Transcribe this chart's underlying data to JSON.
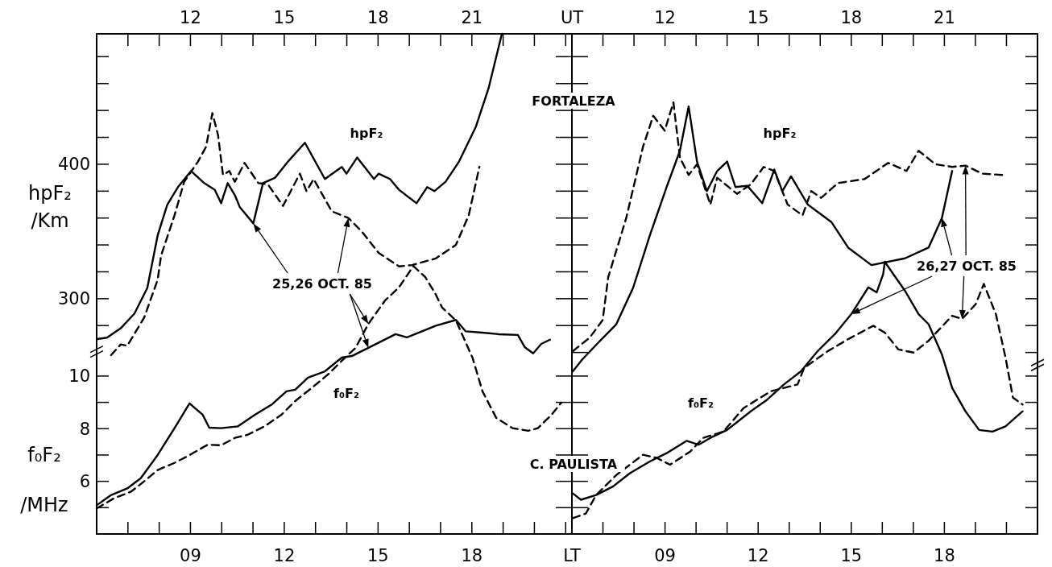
{
  "chart_data": [
    {
      "type": "line",
      "ylabel": "f₀F₂ /MHz",
      "y2label": "hpF₂ /Km",
      "xlim": [
        6,
        21.2
      ],
      "xticks": [
        {
          "value": 7,
          "label": null
        },
        {
          "value": 8,
          "label": null
        },
        {
          "value": 9,
          "label": "09"
        },
        {
          "value": 10,
          "label": null
        },
        {
          "value": 11,
          "label": null
        },
        12,
        {
          "value": 13,
          "label": null
        },
        {
          "value": 14,
          "label": null
        },
        15,
        {
          "value": 16,
          "label": null
        },
        {
          "value": 17,
          "label": null
        },
        18,
        {
          "value": 19,
          "label": null
        },
        {
          "value": 20,
          "label": null
        },
        {
          "value": 21,
          "label": null
        }
      ],
      "x2lim": [
        9,
        24.2
      ],
      "x2ticks": [
        {
          "value": 10,
          "label": null
        },
        {
          "value": 11,
          "label": null
        },
        12,
        {
          "value": 13,
          "label": null
        },
        {
          "value": 14,
          "label": null
        },
        15,
        {
          "value": 16,
          "label": null
        },
        {
          "value": 17,
          "label": null
        },
        18,
        {
          "value": 19,
          "label": null
        },
        {
          "value": 20,
          "label": null
        },
        21,
        {
          "value": 22,
          "label": null
        },
        {
          "value": 23,
          "label": null
        },
        {
          "value": 24,
          "label": null
        }
      ],
      "ylim": [
        4,
        23
      ],
      "yticks": [
        {
          "value": 5,
          "label": null
        },
        6,
        {
          "value": 7,
          "label": null
        },
        8,
        {
          "value": 9,
          "label": null
        },
        10
      ],
      "y2lim": [
        125,
        497
      ],
      "y2ticks": [
        {
          "value": 280,
          "label": null
        },
        300,
        {
          "value": 320,
          "label": null
        },
        {
          "value": 340,
          "label": null
        },
        {
          "value": 360,
          "label": null
        },
        {
          "value": 380,
          "label": null
        },
        400,
        {
          "value": 420,
          "label": null
        },
        {
          "value": 440,
          "label": null
        },
        {
          "value": 460,
          "label": null
        },
        {
          "value": 480,
          "label": null
        }
      ],
      "series": [
        {
          "color": "#000000",
          "line_style": "solid",
          "axis": "y2",
          "x": [
            6.0,
            6.33,
            6.77,
            7.21,
            7.62,
            7.95,
            8.26,
            8.6,
            9.02,
            9.44,
            9.78,
            9.98,
            10.19,
            10.42,
            10.58,
            11.01,
            11.32,
            11.71,
            12.12,
            12.66,
            13.3,
            13.84,
            13.99,
            14.33,
            14.87,
            15.02,
            15.38,
            15.67,
            16.23,
            16.57,
            16.8,
            17.16,
            17.59,
            18.13,
            18.54,
            18.96
          ],
          "values": [
            270,
            271,
            278,
            289,
            308,
            347,
            370,
            383,
            395,
            386,
            381,
            371,
            386,
            377,
            368,
            356,
            386,
            390,
            402,
            416,
            389,
            398,
            393,
            405,
            389,
            393,
            389,
            381,
            371,
            383,
            380,
            387,
            402,
            428,
            457,
            497
          ]
        },
        {
          "color": "#000000",
          "line_style": "dashed",
          "axis": "y2",
          "x": [
            6.46,
            6.77,
            6.98,
            7.52,
            7.95,
            8.06,
            8.49,
            8.8,
            9.24,
            9.5,
            9.7,
            9.88,
            10.04,
            10.24,
            10.42,
            10.73,
            11.17,
            11.48,
            11.96,
            12.5,
            12.71,
            12.94,
            13.52,
            14.05,
            14.48,
            15.02,
            15.67,
            16.09,
            16.85,
            17.49,
            17.9,
            18.24
          ],
          "values": [
            258,
            266,
            265,
            286,
            314,
            332,
            362,
            387,
            402,
            413,
            438,
            422,
            392,
            395,
            387,
            401,
            386,
            385,
            369,
            393,
            380,
            389,
            365,
            360,
            350,
            334,
            324,
            325,
            330,
            340,
            362,
            398
          ]
        },
        {
          "color": "#000000",
          "line_style": "solid",
          "axis": "y",
          "x": [
            6.0,
            6.45,
            6.98,
            7.41,
            7.95,
            8.49,
            8.97,
            9.39,
            9.6,
            9.98,
            10.52,
            11.06,
            11.59,
            12.07,
            12.35,
            12.76,
            13.3,
            13.84,
            14.16,
            14.69,
            15.56,
            15.92,
            16.31,
            16.85,
            17.49,
            17.8,
            18.34,
            18.85,
            19.47,
            19.69,
            19.96,
            20.22,
            20.5
          ],
          "values": [
            5.09,
            5.47,
            5.73,
            6.12,
            7.0,
            8.02,
            8.96,
            8.53,
            8.04,
            8.02,
            8.09,
            8.53,
            8.91,
            9.42,
            9.48,
            9.94,
            10.18,
            10.7,
            10.76,
            11.07,
            11.59,
            11.47,
            11.65,
            11.91,
            12.13,
            11.7,
            11.65,
            11.59,
            11.56,
            11.1,
            10.86,
            11.22,
            11.38
          ]
        },
        {
          "color": "#000000",
          "line_style": "dashed",
          "axis": "y",
          "x": [
            6.0,
            6.56,
            7.09,
            7.52,
            7.95,
            8.49,
            8.9,
            9.55,
            9.98,
            10.42,
            10.83,
            11.37,
            11.91,
            12.35,
            12.88,
            13.4,
            13.84,
            14.28,
            14.69,
            15.23,
            15.67,
            16.13,
            16.51,
            16.84,
            17.05,
            17.49,
            18.02,
            18.34,
            18.78,
            19.3,
            19.8,
            20.11,
            20.55,
            20.86
          ],
          "values": [
            4.97,
            5.36,
            5.6,
            6.0,
            6.43,
            6.7,
            6.95,
            7.39,
            7.37,
            7.65,
            7.77,
            8.09,
            8.53,
            9.05,
            9.55,
            10.06,
            10.58,
            11.07,
            11.98,
            12.88,
            13.37,
            14.18,
            13.76,
            13.11,
            12.6,
            12.11,
            10.7,
            9.42,
            8.41,
            8.02,
            7.92,
            8.02,
            8.53,
            8.99
          ]
        }
      ],
      "annotations": [
        "hpF₂",
        "f₀F₂",
        "25,26 OCT. 85"
      ]
    },
    {
      "type": "line",
      "tick_labels": "x",
      "xlabel": "LT",
      "x2label": "UT",
      "xlim": [
        6,
        21
      ],
      "xticks": [
        {
          "value": 7,
          "label": null
        },
        {
          "value": 8,
          "label": null
        },
        {
          "value": 9,
          "label": "09"
        },
        {
          "value": 10,
          "label": null
        },
        {
          "value": 11,
          "label": null
        },
        12,
        {
          "value": 13,
          "label": null
        },
        {
          "value": 14,
          "label": null
        },
        15,
        {
          "value": 16,
          "label": null
        },
        {
          "value": 17,
          "label": null
        },
        18,
        {
          "value": 19,
          "label": null
        },
        {
          "value": 20,
          "label": null
        }
      ],
      "x2lim": [
        9,
        24
      ],
      "x2ticks": [
        {
          "value": 10,
          "label": null
        },
        {
          "value": 11,
          "label": null
        },
        12,
        {
          "value": 13,
          "label": null
        },
        {
          "value": 14,
          "label": null
        },
        15,
        {
          "value": 16,
          "label": null
        },
        {
          "value": 17,
          "label": null
        },
        18,
        {
          "value": 19,
          "label": null
        },
        {
          "value": 20,
          "label": null
        },
        21,
        {
          "value": 22,
          "label": null
        },
        {
          "value": 23,
          "label": null
        }
      ],
      "ylim": [
        4,
        23
      ],
      "yticks": [
        {
          "value": 5,
          "label": null
        },
        {
          "value": 6,
          "label": null
        },
        {
          "value": 7,
          "label": null
        },
        {
          "value": 8,
          "label": null
        },
        {
          "value": 9,
          "label": null
        },
        {
          "value": 10,
          "label": null
        }
      ],
      "y2lim": [
        125,
        497
      ],
      "y2ticks": [
        {
          "value": 260,
          "label": null
        },
        {
          "value": 280,
          "label": null
        },
        {
          "value": 300,
          "label": null
        },
        {
          "value": 320,
          "label": null
        },
        {
          "value": 340,
          "label": null
        },
        {
          "value": 360,
          "label": null
        },
        {
          "value": 380,
          "label": null
        },
        {
          "value": 400,
          "label": null
        },
        {
          "value": 420,
          "label": null
        },
        {
          "value": 440,
          "label": null
        },
        {
          "value": 460,
          "label": null
        },
        {
          "value": 480,
          "label": null
        }
      ],
      "series": [
        {
          "color": "#000000",
          "line_style": "solid",
          "axis": "y2",
          "x": [
            6.03,
            6.34,
            6.88,
            7.43,
            7.97,
            8.51,
            9.05,
            9.48,
            9.76,
            10.03,
            10.35,
            10.68,
            11.0,
            11.27,
            11.65,
            12.13,
            12.52,
            12.78,
            13.06,
            13.6,
            14.36,
            14.9,
            15.65,
            16.73,
            17.49,
            17.92,
            18.25
          ],
          "values": [
            246,
            255,
            268,
            281,
            308,
            347,
            383,
            410,
            443,
            402,
            380,
            395,
            402,
            383,
            384,
            371,
            396,
            380,
            391,
            370,
            357,
            338,
            325,
            330,
            338,
            360,
            395
          ]
        },
        {
          "color": "#000000",
          "line_style": "dashed",
          "axis": "y2",
          "x": [
            6.03,
            6.57,
            6.99,
            7.17,
            7.75,
            8.29,
            8.62,
            8.99,
            9.27,
            9.48,
            9.76,
            10.03,
            10.46,
            10.68,
            11.32,
            11.76,
            12.18,
            12.52,
            12.95,
            13.43,
            13.71,
            14.03,
            14.57,
            15.43,
            16.19,
            16.78,
            17.17,
            17.71,
            18.25,
            18.68,
            19.22,
            19.87
          ],
          "values": [
            261,
            271,
            284,
            316,
            360,
            413,
            436,
            425,
            446,
            405,
            392,
            400,
            370,
            390,
            378,
            385,
            398,
            395,
            370,
            362,
            380,
            375,
            386,
            389,
            401,
            395,
            410,
            400,
            398,
            399,
            393,
            392
          ]
        },
        {
          "color": "#000000",
          "line_style": "solid",
          "axis": "y",
          "x": [
            6.03,
            6.29,
            6.78,
            7.32,
            7.87,
            8.52,
            9.05,
            9.7,
            10.08,
            10.46,
            11.0,
            11.76,
            12.3,
            12.83,
            13.38,
            13.92,
            14.47,
            15.0,
            15.55,
            15.82,
            16.03,
            16.08,
            16.42,
            16.73,
            17.17,
            17.49,
            17.92,
            18.25,
            18.68,
            19.12,
            19.55,
            19.97,
            20.52
          ],
          "values": [
            5.54,
            5.3,
            5.48,
            5.8,
            6.31,
            6.76,
            7.07,
            7.54,
            7.39,
            7.65,
            7.95,
            8.66,
            9.11,
            9.68,
            10.18,
            10.95,
            11.59,
            12.35,
            13.37,
            13.18,
            13.88,
            14.34,
            13.76,
            13.24,
            12.35,
            11.97,
            10.82,
            9.55,
            8.66,
            7.95,
            7.89,
            8.09,
            8.66
          ]
        },
        {
          "color": "#000000",
          "line_style": "dashed",
          "axis": "y",
          "x": [
            6.03,
            6.45,
            6.78,
            7.43,
            8.29,
            8.73,
            9.16,
            9.81,
            10.23,
            10.88,
            11.53,
            12.4,
            13.27,
            13.48,
            14.25,
            14.9,
            15.71,
            16.08,
            16.52,
            17.01,
            17.49,
            18.25,
            18.57,
            19.01,
            19.27,
            19.66,
            19.97,
            20.21,
            20.52
          ],
          "values": [
            4.6,
            4.78,
            5.48,
            6.24,
            7.01,
            6.89,
            6.63,
            7.13,
            7.65,
            7.89,
            8.78,
            9.42,
            9.68,
            10.31,
            10.95,
            11.4,
            11.91,
            11.65,
            11.01,
            10.89,
            11.34,
            12.29,
            12.17,
            12.73,
            13.5,
            12.35,
            10.7,
            9.18,
            8.92
          ]
        }
      ],
      "annotations": [
        "FORTALEZA",
        "C. PAULISTA",
        "hpF₂",
        "f₀F₂",
        "26,27 OCT. 85"
      ]
    }
  ]
}
